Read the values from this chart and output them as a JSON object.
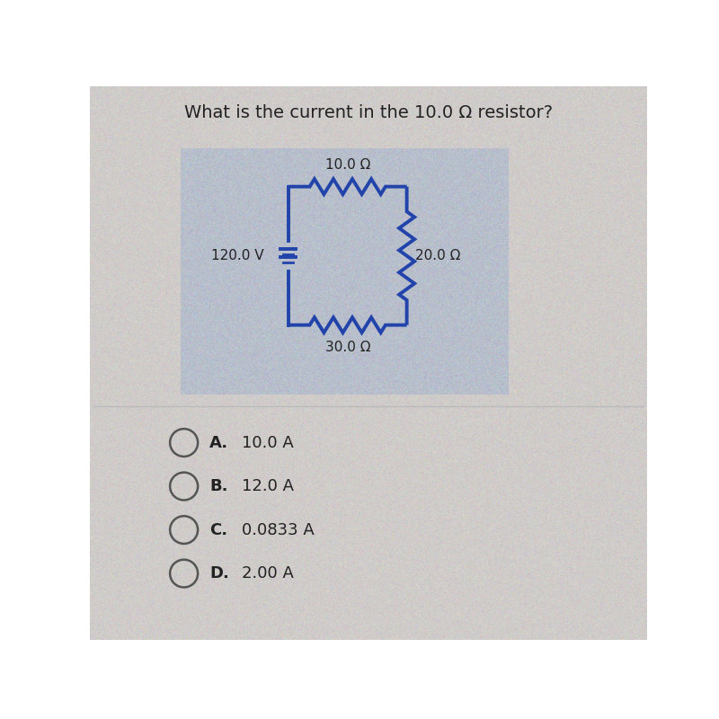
{
  "title": "What is the current in the 10.0 Ω resistor?",
  "title_fontsize": 14,
  "circuit_color": "#2244aa",
  "label_10": "10.0 Ω",
  "label_20": "20.0 Ω",
  "label_30": "30.0 Ω",
  "label_voltage": "120.0 V",
  "options": [
    {
      "letter": "A",
      "text": "10.0 A"
    },
    {
      "letter": "B",
      "text": "12.0 A"
    },
    {
      "letter": "C",
      "text": "0.0833 A"
    },
    {
      "letter": "D",
      "text": "2.00 A"
    }
  ],
  "page_bg": "#d0ccca",
  "circuit_panel_bg": "#b8bfcc",
  "divider_color": "#bbbbbb",
  "text_color": "#222222"
}
